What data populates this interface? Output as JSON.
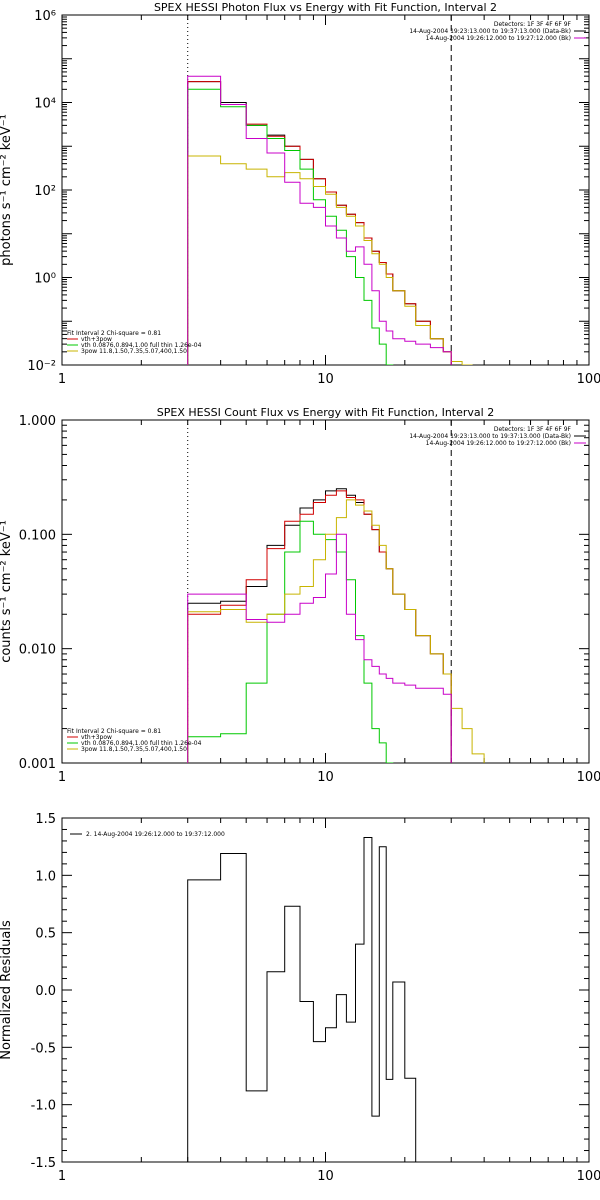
{
  "chart_data": [
    {
      "type": "line",
      "title": "SPEX HESSI Photon Flux vs Energy with Fit Function, Interval 2",
      "ylabel": "photons s⁻¹ cm⁻² keV⁻¹",
      "xlabel": "",
      "xscale": "log",
      "yscale": "log",
      "xlim": [
        1,
        100
      ],
      "ylim": [
        0.01,
        1000000
      ],
      "x_ticks": [
        {
          "value": 1,
          "label": "1"
        },
        {
          "value": 10,
          "label": "10"
        },
        {
          "value": 100,
          "label": "100"
        }
      ],
      "y_ticks": [
        {
          "value": 0.01,
          "label": "10⁻²"
        },
        {
          "value": 1,
          "label": "10⁰"
        },
        {
          "value": 100,
          "label": "10²"
        },
        {
          "value": 10000,
          "label": "10⁴"
        },
        {
          "value": 1000000,
          "label": "10⁶"
        }
      ],
      "vlines": [
        {
          "x": 3.0,
          "style": "dotted"
        },
        {
          "x": 30.0,
          "style": "dashed"
        }
      ],
      "header_lines": [
        "Detectors: 1F 3F 4F 6F 9F",
        "14-Aug-2004 19:23:13.000 to 19:37:13.000 (Data-Bk)",
        "14-Aug-2004 19:26:12.000 to 19:27:12.000 (Bk)"
      ],
      "legend": {
        "header": "Fit Interval 2   Chi-square = 0.81",
        "entries": [
          {
            "label": "vth+3pow",
            "color": "#d00000"
          },
          {
            "label": "vth 0.0876,0.894,1.00  full thin 1.26e-04",
            "color": "#00c800"
          },
          {
            "label": "3pow 11.8,1.50,7.35,5.07,400,1.50",
            "color": "#c8b400"
          }
        ]
      },
      "series": [
        {
          "color": "#000000",
          "edges": [
            3,
            4,
            5,
            6,
            7,
            8,
            9,
            10,
            11,
            12,
            13,
            14,
            15,
            16,
            17,
            18,
            20,
            22,
            25,
            28,
            30
          ],
          "values": [
            30000,
            10000,
            3000,
            1800,
            1000,
            500,
            180,
            90,
            45,
            28,
            18,
            8,
            4,
            2.2,
            1.2,
            0.5,
            0.25,
            0.1,
            0.04,
            0.02
          ]
        },
        {
          "color": "#d00000",
          "edges": [
            3,
            4,
            5,
            6,
            7,
            8,
            9,
            10,
            11,
            12,
            13,
            14,
            15,
            16,
            17,
            18,
            20,
            22,
            25,
            28,
            30
          ],
          "values": [
            30000,
            9000,
            3200,
            1700,
            1000,
            500,
            180,
            90,
            45,
            28,
            18,
            8,
            4,
            2.2,
            1.2,
            0.5,
            0.25,
            0.1,
            0.04,
            0.02
          ]
        },
        {
          "color": "#00c800",
          "edges": [
            3,
            4,
            5,
            6,
            7,
            8,
            9,
            10,
            11,
            12,
            13,
            14,
            15,
            16,
            17,
            18
          ],
          "values": [
            20000,
            8000,
            3000,
            1500,
            800,
            300,
            60,
            25,
            12,
            3,
            1,
            0.3,
            0.07,
            0.03,
            0.01
          ]
        },
        {
          "color": "#c8b400",
          "edges": [
            3,
            4,
            5,
            6,
            7,
            8,
            9,
            10,
            11,
            12,
            13,
            14,
            15,
            16,
            17,
            18,
            20,
            22,
            25,
            28,
            30,
            33,
            36
          ],
          "values": [
            600,
            400,
            300,
            200,
            250,
            180,
            120,
            80,
            40,
            25,
            15,
            7,
            3.5,
            2,
            1,
            0.5,
            0.22,
            0.08,
            0.04,
            0.02,
            0.012,
            0.01
          ]
        },
        {
          "color": "#c800c8",
          "edges": [
            3,
            4,
            5,
            6,
            7,
            8,
            9,
            10,
            11,
            12,
            13,
            14,
            15,
            16,
            17,
            18,
            20,
            22,
            25,
            28,
            30
          ],
          "values": [
            40000,
            9000,
            1500,
            700,
            150,
            50,
            40,
            15,
            8,
            4,
            5,
            2,
            0.5,
            0.1,
            0.06,
            0.04,
            0.035,
            0.03,
            0.025,
            0.02
          ]
        }
      ]
    },
    {
      "type": "line",
      "title": "SPEX HESSI Count Flux vs Energy with Fit Function, Interval 2",
      "ylabel": "counts s⁻¹ cm⁻² keV⁻¹",
      "xlabel": "",
      "xscale": "log",
      "yscale": "log",
      "xlim": [
        1,
        100
      ],
      "ylim": [
        0.001,
        1.0
      ],
      "x_ticks": [
        {
          "value": 1,
          "label": "1"
        },
        {
          "value": 10,
          "label": "10"
        },
        {
          "value": 100,
          "label": "100"
        }
      ],
      "y_ticks": [
        {
          "value": 0.001,
          "label": "0.001"
        },
        {
          "value": 0.01,
          "label": "0.010"
        },
        {
          "value": 0.1,
          "label": "0.100"
        },
        {
          "value": 1.0,
          "label": "1.000"
        }
      ],
      "vlines": [
        {
          "x": 3.0,
          "style": "dotted"
        },
        {
          "x": 30.0,
          "style": "dashed"
        }
      ],
      "header_lines": [
        "Detectors: 1F 3F 4F 6F 9F",
        "14-Aug-2004 19:23:13.000 to 19:37:13.000 (Data-Bk)",
        "14-Aug-2004 19:26:12.000 to 19:27:12.000 (Bk)"
      ],
      "legend": {
        "header": "Fit Interval 2   Chi-square = 0.81",
        "entries": [
          {
            "label": "vth+3pow",
            "color": "#d00000"
          },
          {
            "label": "vth 0.0876,0.894,1.00  full thin 1.26e-04",
            "color": "#00c800"
          },
          {
            "label": "3pow 11.8,1.50,7.35,5.07,400,1.50",
            "color": "#c8b400"
          }
        ]
      },
      "series": [
        {
          "color": "#000000",
          "edges": [
            3,
            4,
            5,
            6,
            7,
            8,
            9,
            10,
            11,
            12,
            13,
            14,
            15,
            16,
            17,
            18,
            20,
            22,
            25,
            28,
            30
          ],
          "values": [
            0.025,
            0.026,
            0.035,
            0.08,
            0.12,
            0.17,
            0.2,
            0.24,
            0.25,
            0.22,
            0.19,
            0.15,
            0.11,
            0.07,
            0.05,
            0.03,
            0.022,
            0.013,
            0.009,
            0.006
          ]
        },
        {
          "color": "#d00000",
          "edges": [
            3,
            4,
            5,
            6,
            7,
            8,
            9,
            10,
            11,
            12,
            13,
            14,
            15,
            16,
            17,
            18,
            20,
            22,
            25,
            28,
            30
          ],
          "values": [
            0.02,
            0.024,
            0.04,
            0.075,
            0.13,
            0.15,
            0.19,
            0.22,
            0.24,
            0.21,
            0.2,
            0.15,
            0.11,
            0.07,
            0.05,
            0.03,
            0.022,
            0.013,
            0.009,
            0.006
          ]
        },
        {
          "color": "#00c800",
          "edges": [
            3,
            4,
            5,
            6,
            7,
            8,
            9,
            10,
            11,
            12,
            13,
            14,
            15,
            16,
            17,
            18
          ],
          "values": [
            0.0017,
            0.0018,
            0.005,
            0.02,
            0.07,
            0.13,
            0.1,
            0.09,
            0.07,
            0.04,
            0.013,
            0.005,
            0.002,
            0.0015,
            0.0008
          ]
        },
        {
          "color": "#c8b400",
          "edges": [
            3,
            4,
            5,
            6,
            7,
            8,
            9,
            10,
            11,
            12,
            13,
            14,
            15,
            16,
            17,
            18,
            20,
            22,
            25,
            28,
            30,
            33,
            36,
            40
          ],
          "values": [
            0.021,
            0.022,
            0.017,
            0.02,
            0.03,
            0.035,
            0.06,
            0.1,
            0.14,
            0.2,
            0.18,
            0.16,
            0.12,
            0.08,
            0.05,
            0.03,
            0.022,
            0.013,
            0.009,
            0.006,
            0.003,
            0.002,
            0.0012
          ]
        },
        {
          "color": "#c800c8",
          "edges": [
            3,
            4,
            5,
            6,
            7,
            8,
            9,
            10,
            11,
            12,
            13,
            14,
            15,
            16,
            17,
            18,
            20,
            22,
            25,
            28,
            30
          ],
          "values": [
            0.03,
            0.03,
            0.018,
            0.017,
            0.02,
            0.025,
            0.028,
            0.045,
            0.1,
            0.02,
            0.012,
            0.008,
            0.007,
            0.006,
            0.0055,
            0.005,
            0.0048,
            0.0045,
            0.0045,
            0.004
          ]
        }
      ]
    },
    {
      "type": "line",
      "title": "",
      "ylabel": "Normalized Residuals",
      "xlabel": "",
      "xscale": "log",
      "yscale": "linear",
      "xlim": [
        1,
        100
      ],
      "ylim": [
        -1.5,
        1.5
      ],
      "x_ticks": [
        {
          "value": 1,
          "label": "1"
        },
        {
          "value": 10,
          "label": "10"
        },
        {
          "value": 100,
          "label": "100"
        }
      ],
      "y_ticks": [
        {
          "value": -1.5,
          "label": "-1.5"
        },
        {
          "value": -1.0,
          "label": "-1.0"
        },
        {
          "value": -0.5,
          "label": "-0.5"
        },
        {
          "value": 0.0,
          "label": "0.0"
        },
        {
          "value": 0.5,
          "label": "0.5"
        },
        {
          "value": 1.0,
          "label": "1.0"
        },
        {
          "value": 1.5,
          "label": "1.5"
        }
      ],
      "vlines": [],
      "header_lines": [],
      "legend": {
        "header": "",
        "entries": [
          {
            "label": "2. 14-Aug-2004 19:26:12.000 to 19:37:12.000",
            "color": "#000000"
          }
        ]
      },
      "series": [
        {
          "color": "#000000",
          "closed": true,
          "edges": [
            3,
            4,
            5,
            6,
            7,
            8,
            9,
            10,
            11,
            12,
            13,
            14,
            15,
            16,
            17,
            18,
            20,
            22,
            25,
            28,
            30
          ],
          "values": [
            0.96,
            1.19,
            -0.88,
            0.16,
            0.73,
            -0.1,
            -0.45,
            -0.33,
            -0.04,
            -0.28,
            0.4,
            1.33,
            -1.1,
            1.25,
            -0.78,
            0.07,
            -0.77,
            null,
            null,
            null
          ]
        }
      ]
    }
  ]
}
